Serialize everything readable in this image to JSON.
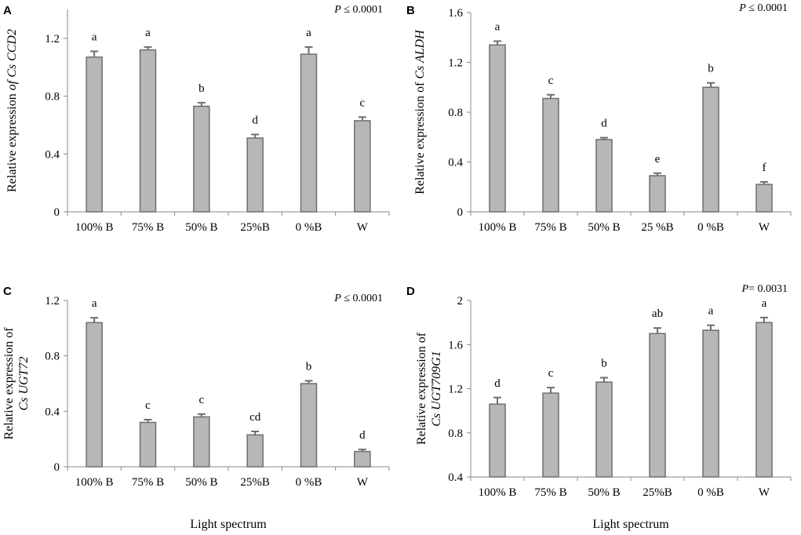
{
  "figure": {
    "xlabel_common": "Light spectrum"
  },
  "colors": {
    "bar_fill": "#b7b7b7",
    "bar_stroke": "#6e6e6e",
    "axis": "#888888",
    "text": "#000000"
  },
  "chart_data": [
    {
      "type": "bar",
      "panel": "A",
      "categories": [
        "100% B",
        "75% B",
        "50% B",
        "25%B",
        "0 %B",
        "W"
      ],
      "values": [
        1.07,
        1.12,
        0.73,
        0.51,
        1.09,
        0.63
      ],
      "errors": [
        0.04,
        0.02,
        0.025,
        0.025,
        0.05,
        0.025
      ],
      "significance": [
        "a",
        "a",
        "b",
        "d",
        "a",
        "c"
      ],
      "ylabel_prefix": "Relative expression ",
      "ylabel_gene": "of Cs CCD2",
      "ylim": [
        0,
        1.4
      ],
      "yticks": [
        0,
        0.4,
        0.8,
        1.2
      ],
      "ytick_labels": [
        "0",
        "0.4",
        "0.8",
        "1.2"
      ],
      "p_symbol": "P",
      "p_text": " ≤ 0.0001",
      "xlabel": ""
    },
    {
      "type": "bar",
      "panel": "B",
      "categories": [
        "100% B",
        "75% B",
        "50% B",
        "25 %B",
        "0 %B",
        "W"
      ],
      "values": [
        1.34,
        0.91,
        0.58,
        0.29,
        1.0,
        0.22
      ],
      "errors": [
        0.03,
        0.03,
        0.015,
        0.02,
        0.035,
        0.02
      ],
      "significance": [
        "a",
        "c",
        "d",
        "e",
        "b",
        "f"
      ],
      "ylabel_prefix": "Relative expression of ",
      "ylabel_gene": "Cs ALDH",
      "ylim": [
        0,
        1.6
      ],
      "yticks": [
        0,
        0.4,
        0.8,
        1.2,
        1.6
      ],
      "ytick_labels": [
        "0",
        "0.4",
        "0.8",
        "1.2",
        "1.6"
      ],
      "p_symbol": "P",
      "p_text": " ≤ 0.0001",
      "xlabel": ""
    },
    {
      "type": "bar",
      "panel": "C",
      "categories": [
        "100% B",
        "75% B",
        "50% B",
        "25%B",
        "0 %B",
        "W"
      ],
      "values": [
        1.04,
        0.32,
        0.36,
        0.23,
        0.6,
        0.11
      ],
      "errors": [
        0.035,
        0.02,
        0.02,
        0.025,
        0.02,
        0.015
      ],
      "significance": [
        "a",
        "c",
        "c",
        "cd",
        "b",
        "d"
      ],
      "ylabel_line1": "Relative expression of",
      "ylabel_gene": "Cs UGT72",
      "ylim": [
        0,
        1.2
      ],
      "yticks": [
        0,
        0.4,
        0.8,
        1.2
      ],
      "ytick_labels": [
        "0",
        "0.4",
        "0.8",
        "1.2"
      ],
      "p_symbol": "P",
      "p_text": " ≤ 0.0001",
      "xlabel": "Light spectrum"
    },
    {
      "type": "bar",
      "panel": "D",
      "categories": [
        "100% B",
        "75% B",
        "50% B",
        "25%B",
        "0 %B",
        "W"
      ],
      "values": [
        1.06,
        1.16,
        1.26,
        1.7,
        1.73,
        1.8
      ],
      "errors": [
        0.06,
        0.05,
        0.04,
        0.05,
        0.045,
        0.045
      ],
      "significance": [
        "d",
        "c",
        "b",
        "ab",
        "a",
        "a"
      ],
      "ylabel_line1": "Relative expression of",
      "ylabel_gene": "Cs UGT709G1",
      "ylim": [
        0.4,
        2.0
      ],
      "yticks": [
        0.4,
        0.8,
        1.2,
        1.6,
        2.0
      ],
      "ytick_labels": [
        "0.4",
        "0.8",
        "1.2",
        "1.6",
        "2"
      ],
      "p_symbol": "P",
      "p_text": "= 0.0031",
      "xlabel": "Light spectrum"
    }
  ]
}
